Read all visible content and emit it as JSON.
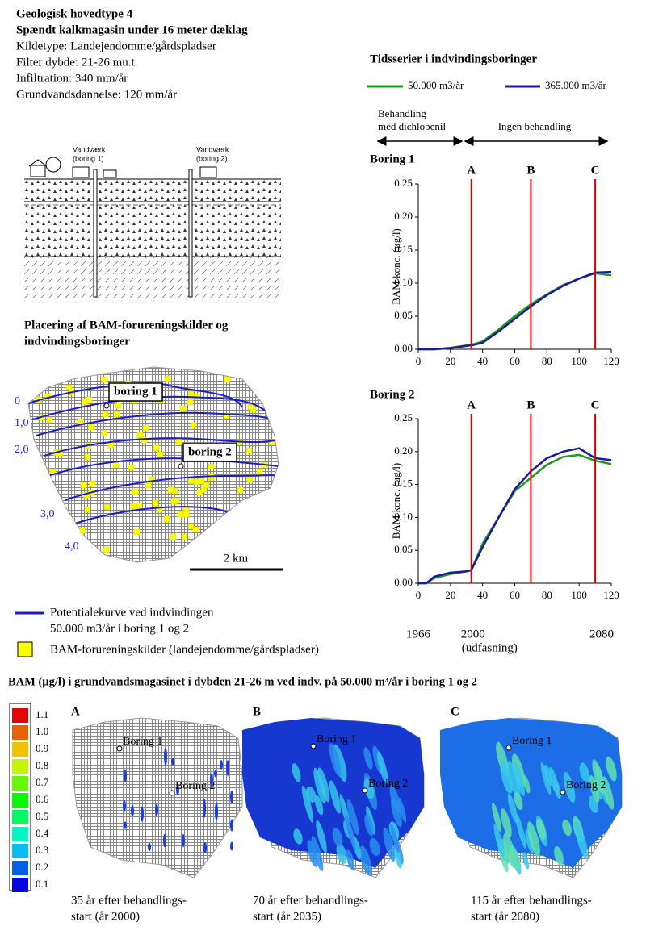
{
  "header": {
    "title": "Geologisk hovedtype 4",
    "subtitle": "Spændt kalkmagasin under 16 meter dæklag",
    "lines": [
      "Kildetype: Landejendomme/gårdspladser",
      "Filter dybde: 21-26 mu.t.",
      "Infiltration: 340 mm/år",
      "Grundvandsdannelse: 120 mm/år"
    ]
  },
  "diagram": {
    "wells": [
      {
        "lines": [
          "Vandværk",
          "(boring 1)"
        ]
      },
      {
        "lines": [
          "Vandværk",
          "(boring 2)"
        ]
      }
    ]
  },
  "map": {
    "title": [
      "Placering af BAM-forureningskilder og",
      "indvindingsboringer"
    ],
    "contour_labels": [
      "0",
      "1,0",
      "2,0",
      "3,0",
      "4,0"
    ],
    "wells": [
      "boring 1",
      "boring 2"
    ],
    "scale": "2 km",
    "legend": {
      "contour": [
        "Potentialekurve ved indvindingen",
        "50.000 m3/år i boring 1 og 2"
      ],
      "sources": "BAM-forureningskilder (landejendomme/gårdspladser)"
    }
  },
  "timeseries": {
    "title": "Tidsserier i indvindingsboringer",
    "phases": [
      [
        "Behandling",
        "med dichlobenil"
      ],
      [
        "Ingen behandling"
      ]
    ]
  },
  "chart_data": [
    {
      "type": "line",
      "title": "Boring 1",
      "y_label": "BAM konc. (µg/l)",
      "x": [
        0,
        10,
        20,
        30,
        35,
        40,
        50,
        60,
        70,
        80,
        90,
        100,
        110,
        120
      ],
      "series": [
        {
          "name": "50.000 m3/år",
          "color": "#1e9a1e",
          "values": [
            0,
            0,
            0.002,
            0.006,
            0.008,
            0.012,
            0.03,
            0.05,
            0.068,
            0.083,
            0.097,
            0.107,
            0.115,
            0.112
          ]
        },
        {
          "name": "365.000 m3/år",
          "color": "#1a1a9a",
          "values": [
            0,
            0,
            0.002,
            0.005,
            0.007,
            0.01,
            0.027,
            0.046,
            0.065,
            0.082,
            0.096,
            0.107,
            0.116,
            0.117
          ]
        }
      ],
      "annotations": [
        {
          "label": "A",
          "x": 33
        },
        {
          "label": "B",
          "x": 70
        },
        {
          "label": "C",
          "x": 110
        }
      ],
      "xlim": [
        0,
        120
      ],
      "xticks": [
        0,
        20,
        40,
        60,
        80,
        100,
        120
      ],
      "ylim": [
        0,
        0.25
      ],
      "yticks": [
        {
          "value": 0,
          "label": "0.00"
        },
        {
          "value": 0.05,
          "label": "0.05"
        },
        {
          "value": 0.1,
          "label": "0.10"
        },
        {
          "value": 0.15,
          "label": "0.15"
        },
        {
          "value": 0.2,
          "label": "0.20"
        },
        {
          "value": 0.25,
          "label": "0.25"
        }
      ]
    },
    {
      "type": "line",
      "title": "Boring 2",
      "y_label": "BAM konc. (µg/l)",
      "x": [
        0,
        5,
        10,
        20,
        30,
        33,
        40,
        50,
        60,
        70,
        80,
        90,
        100,
        110,
        120
      ],
      "series": [
        {
          "color": "#1e9a1e",
          "values": [
            0,
            0,
            0.008,
            0.014,
            0.018,
            0.02,
            0.06,
            0.1,
            0.14,
            0.16,
            0.18,
            0.192,
            0.195,
            0.186,
            0.181
          ]
        },
        {
          "color": "#1a1a9a",
          "values": [
            0,
            0,
            0.01,
            0.016,
            0.018,
            0.02,
            0.055,
            0.1,
            0.143,
            0.17,
            0.19,
            0.2,
            0.205,
            0.19,
            0.187
          ]
        }
      ],
      "annotations": [
        {
          "label": "A",
          "x": 33
        },
        {
          "label": "B",
          "x": 70
        },
        {
          "label": "C",
          "x": 110
        }
      ],
      "xlim": [
        0,
        120
      ],
      "xticks": [
        0,
        20,
        40,
        60,
        80,
        100,
        120
      ],
      "ylim": [
        0,
        0.25
      ],
      "yticks": [
        {
          "value": 0,
          "label": "0.00"
        },
        {
          "value": 0.05,
          "label": "0.05"
        },
        {
          "value": 0.1,
          "label": "0.10"
        },
        {
          "value": 0.15,
          "label": "0.15"
        },
        {
          "value": 0.2,
          "label": "0.20"
        },
        {
          "value": 0.25,
          "label": "0.25"
        }
      ]
    }
  ],
  "timeline": {
    "labels": [
      {
        "x": 0,
        "label": "1966"
      },
      {
        "x": 34,
        "label": "2000"
      },
      {
        "x": 114,
        "label": "2080"
      }
    ],
    "note": "(udfasning)"
  },
  "concentration": {
    "title": "BAM (µg/l) i grundvandsmagasinet i dybden 21-26 m ved indv. på 50.000 m³/år i boring 1 og 2",
    "colorbar": [
      0.1,
      0.2,
      0.3,
      0.4,
      0.5,
      0.6,
      0.7,
      0.8,
      0.9,
      {
        "value": 1,
        "label": "1.0"
      },
      1.1
    ],
    "panels": [
      {
        "label": "A",
        "wells": [
          "Boring 1",
          "Boring 2"
        ],
        "caption": [
          "35 år efter behandlings-",
          "start (år 2000)"
        ]
      },
      {
        "label": "B",
        "wells": [
          "Boring 1",
          "Boring 2"
        ],
        "caption": [
          "70 år efter behandlings-",
          "start (år 2035)"
        ]
      },
      {
        "label": "C",
        "wells": [
          "Boring 1",
          "Boring 2"
        ],
        "caption": [
          "115 år efter behandlings-",
          "start (år 2080)"
        ]
      }
    ]
  }
}
